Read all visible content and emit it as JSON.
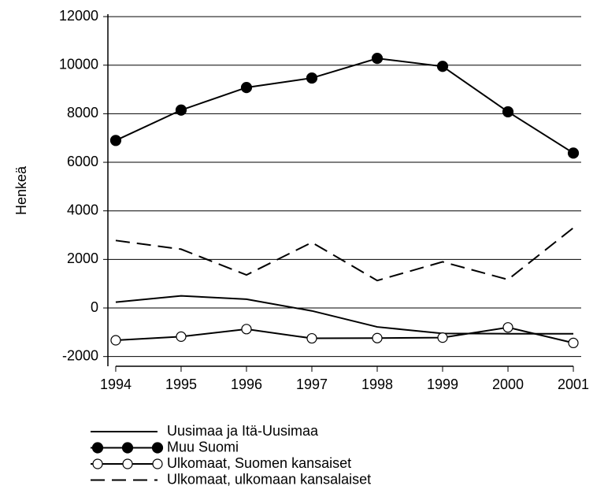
{
  "chart_data": {
    "type": "line",
    "y_label": "Henkeä",
    "x": [
      1994,
      1995,
      1996,
      1997,
      1998,
      1999,
      2000,
      2001
    ],
    "xlim": [
      1993.88,
      2001.12
    ],
    "xticks": [
      1994,
      1995,
      1996,
      1997,
      1998,
      1999,
      2000,
      2001
    ],
    "ylim": [
      -2400,
      12100
    ],
    "yticks": [
      -2000,
      0,
      2000,
      4000,
      6000,
      8000,
      10000,
      12000
    ],
    "grid": true,
    "series": [
      {
        "name": "Uusimaa ja Itä-Uusimaa",
        "color": "#000000",
        "marker": "none",
        "dash": false,
        "values": [
          240,
          500,
          360,
          -120,
          -780,
          -1050,
          -1060,
          -1060
        ]
      },
      {
        "name": "Muu Suomi",
        "color": "#000000",
        "marker": "filled",
        "dash": false,
        "values": [
          6900,
          8150,
          9080,
          9470,
          10280,
          9950,
          8080,
          6380
        ]
      },
      {
        "name": "Ulkomaat, Suomen kansaiset",
        "color": "#000000",
        "marker": "open",
        "dash": false,
        "values": [
          -1330,
          -1180,
          -870,
          -1250,
          -1240,
          -1220,
          -800,
          -1440
        ]
      },
      {
        "name": "Ulkomaat, ulkomaan kansalaiset",
        "color": "#000000",
        "marker": "none",
        "dash": true,
        "values": [
          2780,
          2420,
          1360,
          2700,
          1130,
          1900,
          1170,
          3300
        ]
      }
    ]
  }
}
